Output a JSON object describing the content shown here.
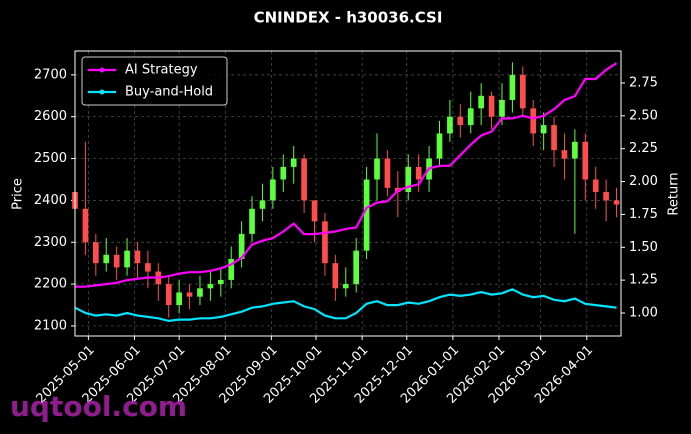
{
  "chart_data": {
    "type": "candlestick",
    "title": "CNINDEX - h30036.CSI",
    "y_label": "Price",
    "y2_label": "Return",
    "watermark": "uqtool.com",
    "x": [
      "2025-04-22",
      "2025-04-29",
      "2025-05-06",
      "2025-05-13",
      "2025-05-20",
      "2025-05-27",
      "2025-06-03",
      "2025-06-10",
      "2025-06-17",
      "2025-06-24",
      "2025-07-01",
      "2025-07-08",
      "2025-07-15",
      "2025-07-22",
      "2025-07-29",
      "2025-08-05",
      "2025-08-12",
      "2025-08-19",
      "2025-08-26",
      "2025-09-02",
      "2025-09-09",
      "2025-09-16",
      "2025-09-23",
      "2025-09-30",
      "2025-10-07",
      "2025-10-14",
      "2025-10-21",
      "2025-10-28",
      "2025-11-04",
      "2025-11-11",
      "2025-11-18",
      "2025-11-25",
      "2025-12-02",
      "2025-12-09",
      "2025-12-16",
      "2025-12-23",
      "2025-12-30",
      "2026-01-06",
      "2026-01-13",
      "2026-01-20",
      "2026-01-27",
      "2026-02-03",
      "2026-02-10",
      "2026-02-17",
      "2026-02-24",
      "2026-03-03",
      "2026-03-10",
      "2026-03-17",
      "2026-03-24",
      "2026-03-31",
      "2026-04-07",
      "2026-04-14",
      "2026-04-21"
    ],
    "open": [
      2420,
      2380,
      2300,
      2250,
      2270,
      2240,
      2280,
      2250,
      2230,
      2200,
      2150,
      2180,
      2170,
      2190,
      2200,
      2210,
      2260,
      2320,
      2380,
      2400,
      2450,
      2480,
      2500,
      2400,
      2350,
      2250,
      2190,
      2200,
      2280,
      2450,
      2500,
      2430,
      2420,
      2480,
      2450,
      2500,
      2560,
      2600,
      2580,
      2620,
      2650,
      2600,
      2640,
      2700,
      2620,
      2560,
      2580,
      2520,
      2500,
      2540,
      2450,
      2420,
      2400
    ],
    "high": [
      2610,
      2540,
      2320,
      2310,
      2290,
      2310,
      2300,
      2280,
      2250,
      2220,
      2210,
      2200,
      2220,
      2230,
      2240,
      2290,
      2350,
      2410,
      2440,
      2480,
      2510,
      2530,
      2510,
      2400,
      2370,
      2270,
      2240,
      2310,
      2480,
      2560,
      2520,
      2470,
      2510,
      2510,
      2530,
      2590,
      2640,
      2630,
      2660,
      2680,
      2660,
      2680,
      2730,
      2720,
      2640,
      2610,
      2600,
      2560,
      2570,
      2560,
      2480,
      2450,
      2430
    ],
    "low": [
      2330,
      2270,
      2220,
      2230,
      2210,
      2220,
      2210,
      2190,
      2160,
      2120,
      2130,
      2140,
      2150,
      2160,
      2170,
      2190,
      2240,
      2300,
      2350,
      2380,
      2420,
      2440,
      2370,
      2300,
      2220,
      2160,
      2170,
      2180,
      2260,
      2400,
      2410,
      2360,
      2400,
      2420,
      2420,
      2480,
      2540,
      2550,
      2560,
      2580,
      2570,
      2580,
      2610,
      2600,
      2530,
      2520,
      2480,
      2450,
      2320,
      2400,
      2380,
      2350,
      2360
    ],
    "close": [
      2380,
      2300,
      2250,
      2270,
      2240,
      2280,
      2250,
      2230,
      2200,
      2150,
      2180,
      2170,
      2190,
      2200,
      2210,
      2260,
      2320,
      2380,
      2400,
      2450,
      2480,
      2500,
      2400,
      2350,
      2250,
      2190,
      2200,
      2280,
      2450,
      2500,
      2430,
      2420,
      2480,
      2450,
      2500,
      2560,
      2600,
      2580,
      2620,
      2650,
      2600,
      2640,
      2700,
      2620,
      2560,
      2580,
      2520,
      2500,
      2540,
      2450,
      2420,
      2400,
      2390
    ],
    "up_color": "#5cff3c",
    "down_color": "#ff4d4d",
    "series": [
      {
        "name": "AI Strategy",
        "color": "#ff00ff",
        "axis": "y2",
        "values": [
          1.2,
          1.2,
          1.21,
          1.22,
          1.23,
          1.25,
          1.26,
          1.27,
          1.27,
          1.28,
          1.3,
          1.31,
          1.31,
          1.32,
          1.34,
          1.37,
          1.42,
          1.52,
          1.55,
          1.57,
          1.62,
          1.68,
          1.6,
          1.6,
          1.61,
          1.62,
          1.64,
          1.65,
          1.8,
          1.84,
          1.85,
          1.93,
          1.96,
          1.98,
          2.1,
          2.12,
          2.12,
          2.2,
          2.28,
          2.35,
          2.38,
          2.48,
          2.48,
          2.5,
          2.48,
          2.5,
          2.55,
          2.62,
          2.65,
          2.78,
          2.78,
          2.85,
          2.9
        ]
      },
      {
        "name": "Buy-and-Hold",
        "color": "#00e5ff",
        "axis": "y2",
        "values": [
          1.04,
          1.0,
          0.98,
          0.99,
          0.98,
          1.0,
          0.98,
          0.97,
          0.96,
          0.94,
          0.95,
          0.95,
          0.96,
          0.96,
          0.97,
          0.99,
          1.01,
          1.04,
          1.05,
          1.07,
          1.08,
          1.09,
          1.05,
          1.03,
          0.98,
          0.96,
          0.96,
          1.0,
          1.07,
          1.09,
          1.06,
          1.06,
          1.08,
          1.07,
          1.09,
          1.12,
          1.14,
          1.13,
          1.14,
          1.16,
          1.14,
          1.15,
          1.18,
          1.14,
          1.12,
          1.13,
          1.1,
          1.09,
          1.11,
          1.07,
          1.06,
          1.05,
          1.04
        ]
      }
    ],
    "xlim": [
      "2025-04-22",
      "2026-04-24"
    ],
    "xticks": [
      "2025-05-01",
      "2025-06-01",
      "2025-07-01",
      "2025-08-01",
      "2025-09-01",
      "2025-10-01",
      "2025-11-01",
      "2025-12-01",
      "2026-01-01",
      "2026-02-01",
      "2026-03-01",
      "2026-04-01"
    ],
    "ylim": [
      2076,
      2757
    ],
    "yticks": [
      2100,
      2200,
      2300,
      2400,
      2500,
      2600,
      2700
    ],
    "y2lim": [
      0.825,
      2.993
    ],
    "y2ticks": [
      {
        "value": 1,
        "label": "1.00"
      },
      1.25,
      {
        "value": 1.5,
        "label": "1.50"
      },
      1.75,
      {
        "value": 2,
        "label": "2.00"
      },
      2.25,
      {
        "value": 2.5,
        "label": "2.50"
      },
      2.75
    ],
    "grid": true,
    "legend": "upper-left"
  }
}
